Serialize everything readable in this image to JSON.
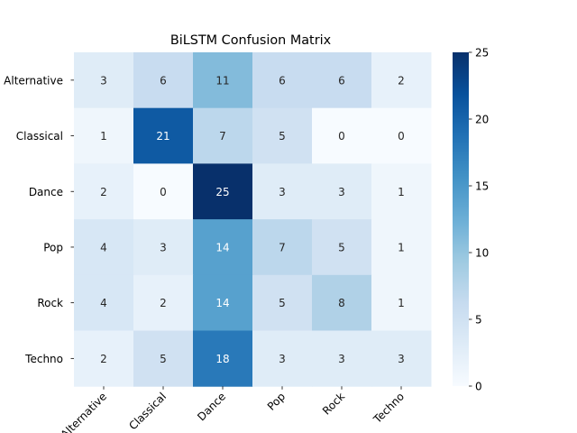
{
  "chart_data": {
    "type": "heatmap",
    "title": "BiLSTM Confusion Matrix",
    "xlabel": "",
    "ylabel": "",
    "row_labels": [
      "Alternative",
      "Classical",
      "Dance",
      "Pop",
      "Rock",
      "Techno"
    ],
    "col_labels": [
      "Alternative",
      "Classical",
      "Dance",
      "Pop",
      "Rock",
      "Techno"
    ],
    "values": [
      [
        3,
        6,
        11,
        6,
        6,
        2
      ],
      [
        1,
        21,
        7,
        5,
        0,
        0
      ],
      [
        2,
        0,
        25,
        3,
        3,
        1
      ],
      [
        4,
        3,
        14,
        7,
        5,
        1
      ],
      [
        4,
        2,
        14,
        5,
        8,
        1
      ],
      [
        2,
        5,
        18,
        3,
        3,
        3
      ]
    ],
    "colorbar": {
      "min": 0,
      "max": 25,
      "ticks": [
        0,
        5,
        10,
        15,
        20,
        25
      ],
      "colormap": "Blues"
    },
    "annotations": true
  }
}
